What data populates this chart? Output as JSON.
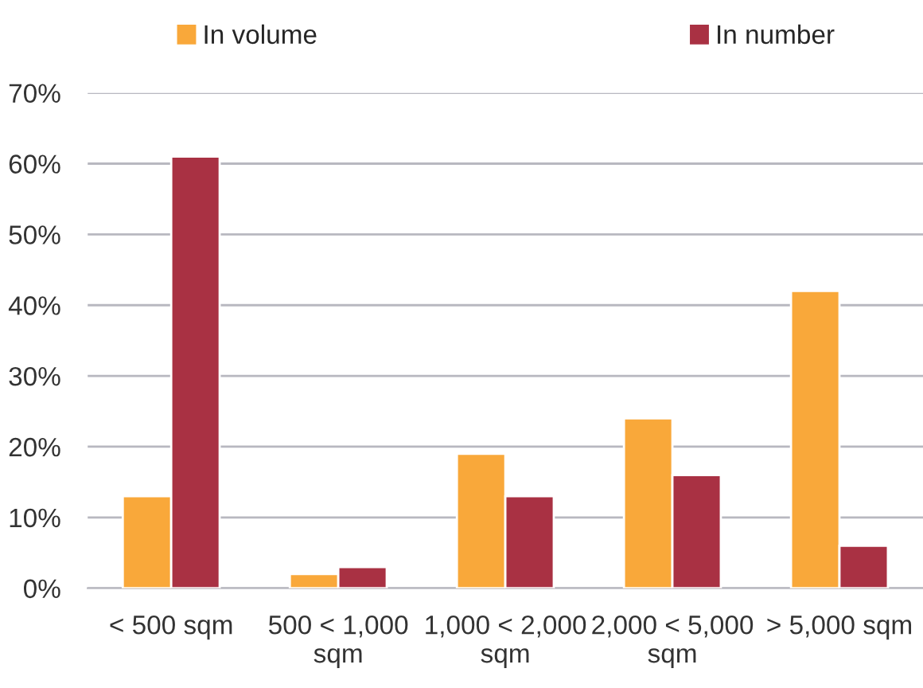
{
  "chart_data": {
    "type": "bar",
    "categories": [
      "< 500 sqm",
      "500 < 1,000\nsqm",
      "1,000 < 2,000\nsqm",
      "2,000 < 5,000\nsqm",
      "> 5,000 sqm"
    ],
    "series": [
      {
        "name": "In volume",
        "color": "#f9a83a",
        "values": [
          13,
          2,
          19,
          24,
          42
        ]
      },
      {
        "name": "In number",
        "color": "#a93143",
        "values": [
          61,
          3,
          13,
          16,
          6
        ]
      }
    ],
    "ylim": [
      0,
      70
    ],
    "yticks": [
      {
        "value": 0,
        "label": "0%"
      },
      {
        "value": 10,
        "label": "10%"
      },
      {
        "value": 20,
        "label": "20%"
      },
      {
        "value": 30,
        "label": "30%"
      },
      {
        "value": 40,
        "label": "40%"
      },
      {
        "value": 50,
        "label": "50%"
      },
      {
        "value": 60,
        "label": "60%"
      },
      {
        "value": 70,
        "label": "70%"
      }
    ],
    "grid": "y",
    "legend": "top"
  }
}
